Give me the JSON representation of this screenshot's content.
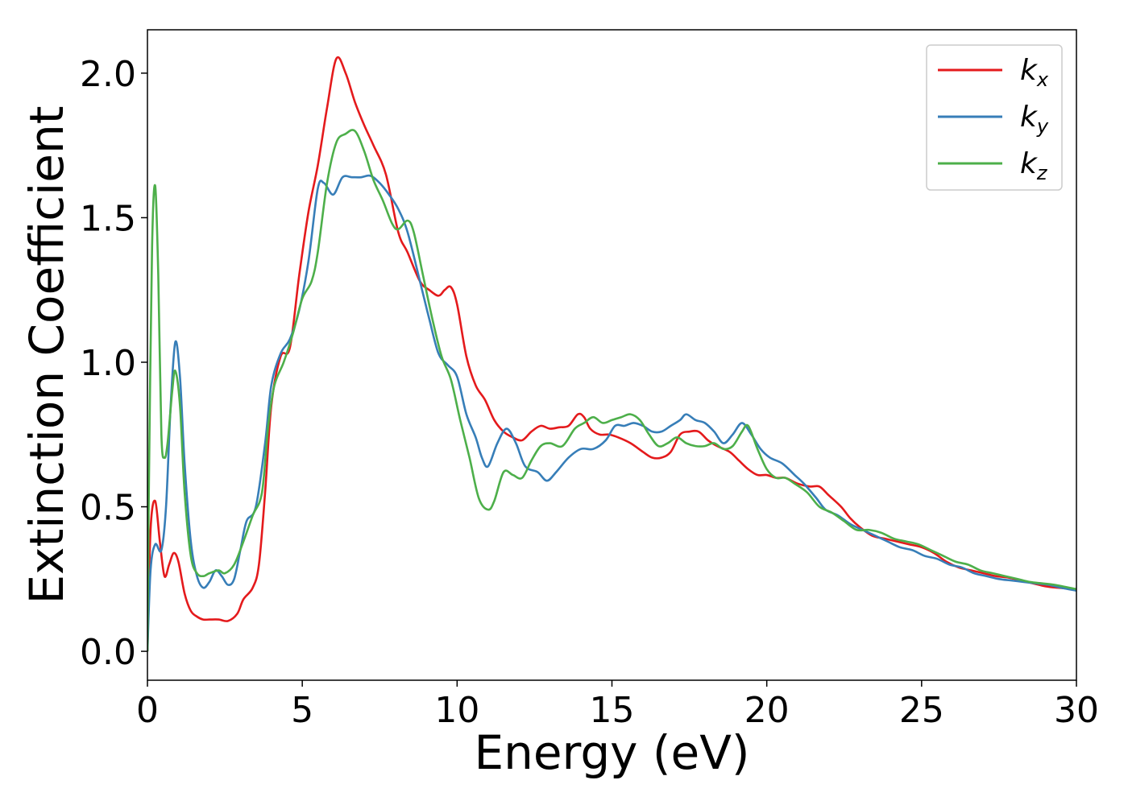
{
  "chart_data": {
    "type": "line",
    "title": "",
    "xlabel": "Energy (eV)",
    "ylabel": "Extinction Coefficient",
    "xlim": [
      0,
      30
    ],
    "ylim": [
      -0.1,
      2.15
    ],
    "xticks": [
      0,
      5,
      10,
      15,
      20,
      25,
      30
    ],
    "xtick_labels": [
      "0",
      "5",
      "10",
      "15",
      "20",
      "25",
      "30"
    ],
    "yticks": [
      0.0,
      0.5,
      1.0,
      1.5,
      2.0
    ],
    "ytick_labels": [
      "0.0",
      "0.5",
      "1.0",
      "1.5",
      "2.0"
    ],
    "grid": false,
    "legend_position": "top-right",
    "series": [
      {
        "name": "k",
        "subscript": "x",
        "color": "#e41a1c",
        "points": [
          [
            0,
            0
          ],
          [
            0.1,
            0.42
          ],
          [
            0.25,
            0.52
          ],
          [
            0.4,
            0.38
          ],
          [
            0.55,
            0.26
          ],
          [
            0.7,
            0.3
          ],
          [
            0.85,
            0.34
          ],
          [
            1.0,
            0.31
          ],
          [
            1.2,
            0.2
          ],
          [
            1.4,
            0.14
          ],
          [
            1.6,
            0.12
          ],
          [
            1.8,
            0.11
          ],
          [
            2.0,
            0.11
          ],
          [
            2.3,
            0.11
          ],
          [
            2.6,
            0.105
          ],
          [
            2.9,
            0.13
          ],
          [
            3.1,
            0.18
          ],
          [
            3.4,
            0.22
          ],
          [
            3.6,
            0.3
          ],
          [
            3.8,
            0.55
          ],
          [
            4.0,
            0.85
          ],
          [
            4.3,
            1.02
          ],
          [
            4.6,
            1.05
          ],
          [
            4.9,
            1.3
          ],
          [
            5.2,
            1.52
          ],
          [
            5.5,
            1.68
          ],
          [
            5.8,
            1.88
          ],
          [
            6.1,
            2.05
          ],
          [
            6.4,
            2.0
          ],
          [
            6.7,
            1.9
          ],
          [
            7.0,
            1.82
          ],
          [
            7.3,
            1.75
          ],
          [
            7.7,
            1.65
          ],
          [
            8.1,
            1.45
          ],
          [
            8.4,
            1.38
          ],
          [
            8.8,
            1.28
          ],
          [
            9.1,
            1.25
          ],
          [
            9.4,
            1.23
          ],
          [
            9.6,
            1.25
          ],
          [
            9.8,
            1.26
          ],
          [
            10.0,
            1.2
          ],
          [
            10.3,
            1.02
          ],
          [
            10.6,
            0.92
          ],
          [
            10.9,
            0.87
          ],
          [
            11.2,
            0.8
          ],
          [
            11.5,
            0.76
          ],
          [
            11.8,
            0.74
          ],
          [
            12.1,
            0.73
          ],
          [
            12.4,
            0.76
          ],
          [
            12.7,
            0.78
          ],
          [
            13.0,
            0.77
          ],
          [
            13.3,
            0.775
          ],
          [
            13.6,
            0.78
          ],
          [
            13.9,
            0.82
          ],
          [
            14.1,
            0.81
          ],
          [
            14.3,
            0.77
          ],
          [
            14.6,
            0.75
          ],
          [
            14.9,
            0.75
          ],
          [
            15.2,
            0.74
          ],
          [
            15.6,
            0.72
          ],
          [
            16.0,
            0.69
          ],
          [
            16.3,
            0.67
          ],
          [
            16.6,
            0.67
          ],
          [
            16.9,
            0.69
          ],
          [
            17.2,
            0.75
          ],
          [
            17.5,
            0.76
          ],
          [
            17.8,
            0.76
          ],
          [
            18.1,
            0.73
          ],
          [
            18.4,
            0.71
          ],
          [
            18.8,
            0.69
          ],
          [
            19.1,
            0.66
          ],
          [
            19.4,
            0.63
          ],
          [
            19.7,
            0.61
          ],
          [
            20.0,
            0.61
          ],
          [
            20.3,
            0.6
          ],
          [
            20.6,
            0.6
          ],
          [
            21.0,
            0.58
          ],
          [
            21.4,
            0.57
          ],
          [
            21.7,
            0.57
          ],
          [
            22.0,
            0.54
          ],
          [
            22.4,
            0.5
          ],
          [
            22.7,
            0.46
          ],
          [
            23.0,
            0.43
          ],
          [
            23.4,
            0.4
          ],
          [
            23.8,
            0.39
          ],
          [
            24.2,
            0.38
          ],
          [
            24.6,
            0.37
          ],
          [
            25.0,
            0.36
          ],
          [
            25.4,
            0.34
          ],
          [
            25.8,
            0.31
          ],
          [
            26.2,
            0.29
          ],
          [
            26.6,
            0.28
          ],
          [
            27.0,
            0.27
          ],
          [
            27.4,
            0.26
          ],
          [
            27.8,
            0.255
          ],
          [
            28.2,
            0.245
          ],
          [
            28.6,
            0.235
          ],
          [
            29.0,
            0.225
          ],
          [
            29.4,
            0.22
          ],
          [
            30.0,
            0.215
          ]
        ]
      },
      {
        "name": "k",
        "subscript": "y",
        "color": "#377eb8",
        "points": [
          [
            0,
            0
          ],
          [
            0.1,
            0.28
          ],
          [
            0.25,
            0.37
          ],
          [
            0.45,
            0.35
          ],
          [
            0.6,
            0.5
          ],
          [
            0.75,
            0.85
          ],
          [
            0.9,
            1.07
          ],
          [
            1.05,
            0.95
          ],
          [
            1.2,
            0.65
          ],
          [
            1.4,
            0.38
          ],
          [
            1.6,
            0.26
          ],
          [
            1.8,
            0.22
          ],
          [
            2.0,
            0.24
          ],
          [
            2.2,
            0.28
          ],
          [
            2.4,
            0.26
          ],
          [
            2.6,
            0.23
          ],
          [
            2.8,
            0.25
          ],
          [
            3.0,
            0.35
          ],
          [
            3.2,
            0.45
          ],
          [
            3.5,
            0.5
          ],
          [
            3.8,
            0.72
          ],
          [
            4.0,
            0.92
          ],
          [
            4.3,
            1.03
          ],
          [
            4.6,
            1.08
          ],
          [
            4.9,
            1.18
          ],
          [
            5.2,
            1.35
          ],
          [
            5.5,
            1.6
          ],
          [
            5.7,
            1.62
          ],
          [
            6.0,
            1.58
          ],
          [
            6.3,
            1.64
          ],
          [
            6.6,
            1.64
          ],
          [
            6.9,
            1.64
          ],
          [
            7.2,
            1.645
          ],
          [
            7.5,
            1.62
          ],
          [
            7.8,
            1.58
          ],
          [
            8.1,
            1.53
          ],
          [
            8.4,
            1.45
          ],
          [
            8.8,
            1.28
          ],
          [
            9.1,
            1.15
          ],
          [
            9.4,
            1.03
          ],
          [
            9.7,
            0.99
          ],
          [
            10.0,
            0.95
          ],
          [
            10.3,
            0.82
          ],
          [
            10.6,
            0.74
          ],
          [
            10.8,
            0.67
          ],
          [
            11.0,
            0.64
          ],
          [
            11.3,
            0.72
          ],
          [
            11.6,
            0.77
          ],
          [
            11.9,
            0.72
          ],
          [
            12.2,
            0.64
          ],
          [
            12.6,
            0.62
          ],
          [
            12.9,
            0.59
          ],
          [
            13.2,
            0.62
          ],
          [
            13.6,
            0.67
          ],
          [
            14.0,
            0.7
          ],
          [
            14.4,
            0.7
          ],
          [
            14.8,
            0.73
          ],
          [
            15.1,
            0.78
          ],
          [
            15.4,
            0.78
          ],
          [
            15.7,
            0.79
          ],
          [
            16.0,
            0.78
          ],
          [
            16.3,
            0.76
          ],
          [
            16.6,
            0.76
          ],
          [
            16.9,
            0.78
          ],
          [
            17.2,
            0.8
          ],
          [
            17.4,
            0.82
          ],
          [
            17.7,
            0.8
          ],
          [
            18.0,
            0.79
          ],
          [
            18.3,
            0.76
          ],
          [
            18.6,
            0.72
          ],
          [
            18.9,
            0.75
          ],
          [
            19.2,
            0.79
          ],
          [
            19.5,
            0.75
          ],
          [
            19.8,
            0.7
          ],
          [
            20.1,
            0.67
          ],
          [
            20.5,
            0.65
          ],
          [
            20.9,
            0.61
          ],
          [
            21.2,
            0.58
          ],
          [
            21.6,
            0.53
          ],
          [
            21.9,
            0.49
          ],
          [
            22.3,
            0.47
          ],
          [
            22.7,
            0.44
          ],
          [
            23.1,
            0.42
          ],
          [
            23.5,
            0.4
          ],
          [
            23.9,
            0.38
          ],
          [
            24.3,
            0.36
          ],
          [
            24.7,
            0.35
          ],
          [
            25.1,
            0.33
          ],
          [
            25.5,
            0.32
          ],
          [
            25.9,
            0.3
          ],
          [
            26.3,
            0.29
          ],
          [
            26.7,
            0.27
          ],
          [
            27.1,
            0.26
          ],
          [
            27.5,
            0.25
          ],
          [
            27.9,
            0.245
          ],
          [
            28.3,
            0.24
          ],
          [
            28.7,
            0.235
          ],
          [
            29.1,
            0.23
          ],
          [
            29.5,
            0.22
          ],
          [
            30.0,
            0.21
          ]
        ]
      },
      {
        "name": "k",
        "subscript": "z",
        "color": "#4daf4a",
        "points": [
          [
            0,
            0
          ],
          [
            0.05,
            0.6
          ],
          [
            0.15,
            1.4
          ],
          [
            0.25,
            1.61
          ],
          [
            0.35,
            1.3
          ],
          [
            0.45,
            0.75
          ],
          [
            0.55,
            0.67
          ],
          [
            0.65,
            0.72
          ],
          [
            0.8,
            0.9
          ],
          [
            0.9,
            0.97
          ],
          [
            1.05,
            0.85
          ],
          [
            1.2,
            0.55
          ],
          [
            1.4,
            0.33
          ],
          [
            1.6,
            0.27
          ],
          [
            1.8,
            0.26
          ],
          [
            2.0,
            0.27
          ],
          [
            2.3,
            0.28
          ],
          [
            2.5,
            0.27
          ],
          [
            2.8,
            0.3
          ],
          [
            3.1,
            0.38
          ],
          [
            3.4,
            0.47
          ],
          [
            3.7,
            0.55
          ],
          [
            3.9,
            0.78
          ],
          [
            4.1,
            0.92
          ],
          [
            4.4,
            1.0
          ],
          [
            4.7,
            1.1
          ],
          [
            5.0,
            1.22
          ],
          [
            5.3,
            1.28
          ],
          [
            5.5,
            1.38
          ],
          [
            5.8,
            1.62
          ],
          [
            6.1,
            1.76
          ],
          [
            6.4,
            1.79
          ],
          [
            6.7,
            1.8
          ],
          [
            7.0,
            1.73
          ],
          [
            7.3,
            1.63
          ],
          [
            7.6,
            1.56
          ],
          [
            7.9,
            1.48
          ],
          [
            8.1,
            1.46
          ],
          [
            8.4,
            1.49
          ],
          [
            8.6,
            1.45
          ],
          [
            8.9,
            1.3
          ],
          [
            9.2,
            1.15
          ],
          [
            9.5,
            1.02
          ],
          [
            9.8,
            0.94
          ],
          [
            10.1,
            0.8
          ],
          [
            10.4,
            0.67
          ],
          [
            10.7,
            0.53
          ],
          [
            11.0,
            0.49
          ],
          [
            11.2,
            0.52
          ],
          [
            11.5,
            0.62
          ],
          [
            11.8,
            0.61
          ],
          [
            12.1,
            0.6
          ],
          [
            12.4,
            0.66
          ],
          [
            12.7,
            0.71
          ],
          [
            13.0,
            0.72
          ],
          [
            13.4,
            0.71
          ],
          [
            13.8,
            0.77
          ],
          [
            14.1,
            0.79
          ],
          [
            14.4,
            0.81
          ],
          [
            14.7,
            0.79
          ],
          [
            15.0,
            0.8
          ],
          [
            15.3,
            0.81
          ],
          [
            15.6,
            0.82
          ],
          [
            15.9,
            0.8
          ],
          [
            16.2,
            0.75
          ],
          [
            16.5,
            0.71
          ],
          [
            16.8,
            0.72
          ],
          [
            17.1,
            0.74
          ],
          [
            17.4,
            0.72
          ],
          [
            17.7,
            0.71
          ],
          [
            18.0,
            0.71
          ],
          [
            18.3,
            0.72
          ],
          [
            18.6,
            0.7
          ],
          [
            18.9,
            0.71
          ],
          [
            19.2,
            0.76
          ],
          [
            19.4,
            0.78
          ],
          [
            19.7,
            0.7
          ],
          [
            20.0,
            0.63
          ],
          [
            20.3,
            0.6
          ],
          [
            20.6,
            0.6
          ],
          [
            20.9,
            0.58
          ],
          [
            21.3,
            0.55
          ],
          [
            21.7,
            0.5
          ],
          [
            22.1,
            0.48
          ],
          [
            22.5,
            0.45
          ],
          [
            22.9,
            0.42
          ],
          [
            23.3,
            0.42
          ],
          [
            23.7,
            0.41
          ],
          [
            24.1,
            0.39
          ],
          [
            24.5,
            0.38
          ],
          [
            24.9,
            0.37
          ],
          [
            25.3,
            0.35
          ],
          [
            25.7,
            0.33
          ],
          [
            26.1,
            0.31
          ],
          [
            26.5,
            0.3
          ],
          [
            26.9,
            0.28
          ],
          [
            27.3,
            0.27
          ],
          [
            27.7,
            0.26
          ],
          [
            28.1,
            0.25
          ],
          [
            28.5,
            0.24
          ],
          [
            28.9,
            0.235
          ],
          [
            29.3,
            0.23
          ],
          [
            30.0,
            0.215
          ]
        ]
      }
    ]
  }
}
